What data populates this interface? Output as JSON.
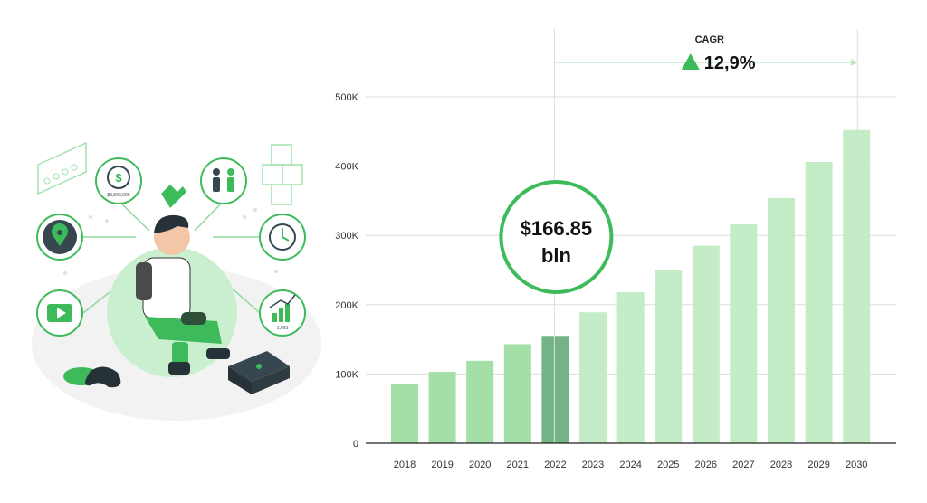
{
  "chart_data": {
    "type": "bar",
    "categories": [
      "2018",
      "2019",
      "2020",
      "2021",
      "2022",
      "2023",
      "2024",
      "2025",
      "2026",
      "2027",
      "2028",
      "2029",
      "2030"
    ],
    "values": [
      85,
      103,
      119,
      143,
      155,
      189,
      218,
      250,
      285,
      316,
      354,
      406,
      452
    ],
    "highlight_category": "2022",
    "ylim": [
      0,
      500
    ],
    "yticks": [
      0,
      100,
      200,
      300,
      400,
      500
    ],
    "ytick_labels": [
      "0",
      "100K",
      "200K",
      "300K",
      "400K",
      "500K"
    ],
    "grid": true,
    "xlabel": "",
    "ylabel": "",
    "title": "",
    "callout": {
      "line1": "$166.85",
      "line2": "bln"
    },
    "cagr": {
      "label": "CAGR",
      "value": "12,9%"
    },
    "colors": {
      "historical": "#a4dfa8",
      "highlight": "#74b484",
      "forecast": "#c4ecc6",
      "accent": "#3dbb5a",
      "grid": "#dddddd",
      "axis": "#222222"
    }
  },
  "illustration": {
    "dollar_badge": "$",
    "badge_caption": "$3,500,000",
    "chart_caption": "1,095"
  }
}
